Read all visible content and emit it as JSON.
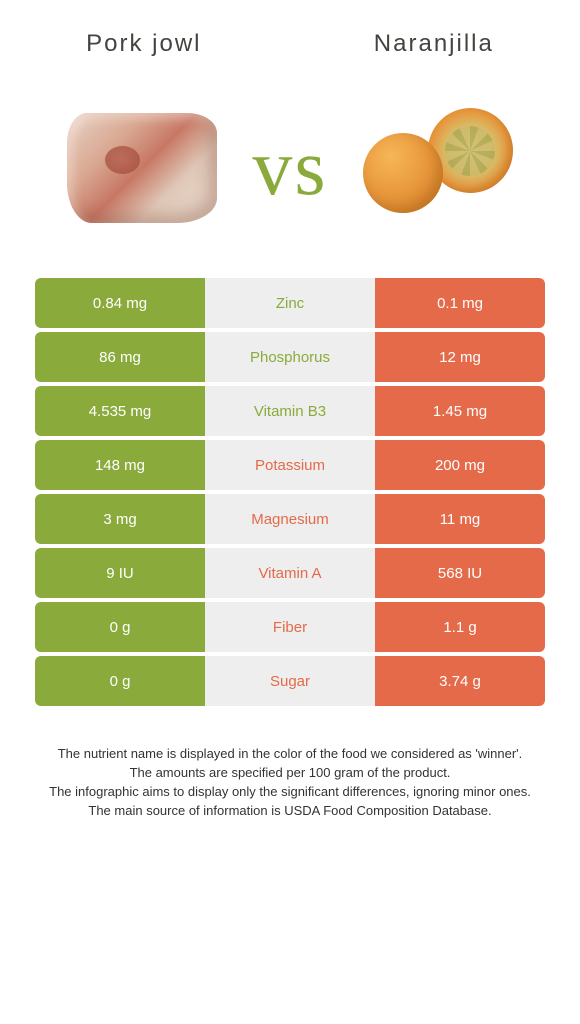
{
  "food_left": {
    "name": "Pork jowl",
    "color": "#8aab3b"
  },
  "food_right": {
    "name": "Naranjilla",
    "color": "#e46a4a"
  },
  "vs_text": "vs",
  "vs_color": "#8aab3b",
  "mid_bg": "#eeeeee",
  "background": "#ffffff",
  "title_color": "#45433f",
  "title_fontsize": 24,
  "nutrient_fontsize": 15,
  "footer_fontsize": 13,
  "rows": [
    {
      "left": "0.84 mg",
      "nutrient": "Zinc",
      "right": "0.1 mg",
      "winner": "left"
    },
    {
      "left": "86 mg",
      "nutrient": "Phosphorus",
      "right": "12 mg",
      "winner": "left"
    },
    {
      "left": "4.535 mg",
      "nutrient": "Vitamin B3",
      "right": "1.45 mg",
      "winner": "left"
    },
    {
      "left": "148 mg",
      "nutrient": "Potassium",
      "right": "200 mg",
      "winner": "right"
    },
    {
      "left": "3 mg",
      "nutrient": "Magnesium",
      "right": "11 mg",
      "winner": "right"
    },
    {
      "left": "9 IU",
      "nutrient": "Vitamin A",
      "right": "568 IU",
      "winner": "right"
    },
    {
      "left": "0 g",
      "nutrient": "Fiber",
      "right": "1.1 g",
      "winner": "right"
    },
    {
      "left": "0 g",
      "nutrient": "Sugar",
      "right": "3.74 g",
      "winner": "right"
    }
  ],
  "footer_lines": [
    "The nutrient name is displayed in the color of the food we considered as 'winner'.",
    "The amounts are specified per 100 gram of the product.",
    "The infographic aims to display only the significant differences, ignoring minor ones.",
    "The main source of information is USDA Food Composition Database."
  ]
}
